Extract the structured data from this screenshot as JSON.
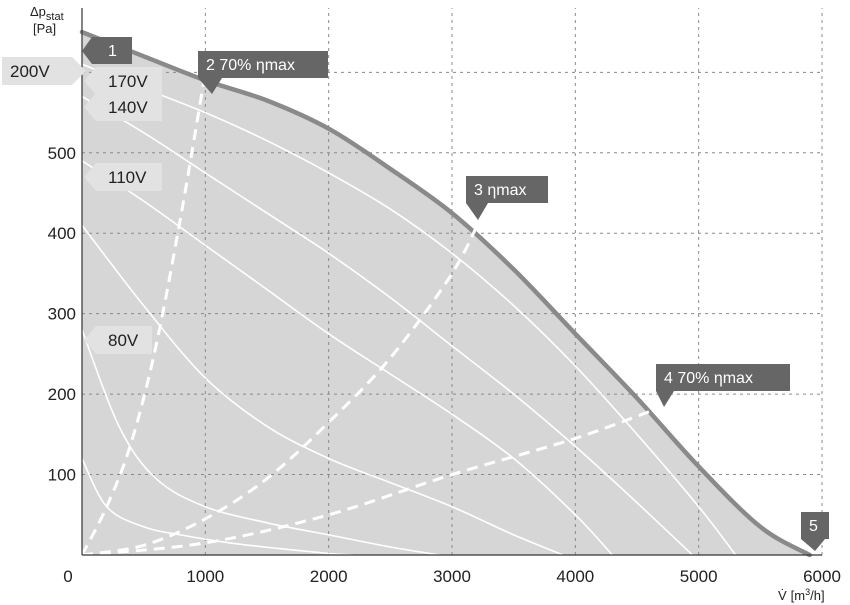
{
  "chart_data": {
    "type": "line",
    "ylabel": "Δp",
    "ylabel_sub": "stat",
    "yunit": "[Pa]",
    "xlabel": "V̇",
    "xunit_pre": "[m",
    "xunit_sup": "3",
    "xunit_post": "/h]",
    "xlim": [
      0,
      6000
    ],
    "ylim": [
      0,
      680
    ],
    "xticks": [
      "0",
      "1000",
      "2000",
      "3000",
      "4000",
      "5000",
      "6000"
    ],
    "xtick_values": [
      0,
      1000,
      2000,
      3000,
      4000,
      5000,
      6000
    ],
    "yticks": [
      "100",
      "200",
      "300",
      "400",
      "500"
    ],
    "ytick_values": [
      100,
      200,
      300,
      400,
      500
    ],
    "grid": true,
    "envelope": {
      "name": "200V",
      "x": [
        0,
        500,
        1000,
        1500,
        2000,
        2500,
        3000,
        3500,
        4000,
        4500,
        5000,
        5500,
        5900
      ],
      "y": [
        650,
        620,
        590,
        565,
        530,
        480,
        425,
        355,
        275,
        195,
        110,
        35,
        0
      ]
    },
    "voltage_curves": [
      {
        "name": "170V",
        "x": [
          0,
          500,
          1000,
          1500,
          2000,
          2500,
          3000,
          3500,
          4000,
          4500,
          5000,
          5300
        ],
        "y": [
          610,
          580,
          550,
          515,
          475,
          430,
          375,
          310,
          235,
          150,
          60,
          0
        ]
      },
      {
        "name": "140V",
        "x": [
          0,
          500,
          1000,
          1500,
          2000,
          2500,
          3000,
          3500,
          4000,
          4500,
          4950
        ],
        "y": [
          570,
          525,
          475,
          425,
          375,
          320,
          260,
          200,
          135,
          65,
          0
        ]
      },
      {
        "name": "110V",
        "x": [
          0,
          500,
          1000,
          1500,
          2000,
          2500,
          3000,
          3500,
          4000,
          4300
        ],
        "y": [
          490,
          440,
          385,
          330,
          275,
          225,
          175,
          120,
          50,
          0
        ]
      },
      {
        "name": "",
        "x": [
          0,
          500,
          1000,
          1500,
          2000,
          2500,
          3000,
          3500,
          3900
        ],
        "y": [
          410,
          310,
          220,
          160,
          120,
          90,
          60,
          25,
          0
        ]
      },
      {
        "name": "80V",
        "x": [
          0,
          300,
          600,
          1000,
          1500,
          2000,
          2500,
          2900
        ],
        "y": [
          280,
          160,
          95,
          60,
          40,
          25,
          10,
          0
        ]
      },
      {
        "name": "",
        "x": [
          0,
          200,
          500,
          800,
          1200,
          1600,
          2000,
          2200
        ],
        "y": [
          120,
          60,
          35,
          25,
          15,
          8,
          2,
          0
        ]
      }
    ],
    "efficiency_lines": [
      {
        "name": "2 70% ηmax",
        "x": [
          0,
          200,
          400,
          600,
          800,
          1000
        ],
        "y": [
          0,
          60,
          140,
          260,
          420,
          600
        ]
      },
      {
        "name": "3 ηmax",
        "x": [
          0,
          500,
          1000,
          1500,
          2000,
          2500,
          3000,
          3250
        ],
        "y": [
          0,
          12,
          45,
          95,
          165,
          245,
          350,
          425
        ]
      },
      {
        "name": "4 70% ηmax",
        "x": [
          0,
          1000,
          2000,
          3000,
          4000,
          4800
        ],
        "y": [
          0,
          15,
          50,
          100,
          145,
          190
        ]
      }
    ],
    "markers": [
      {
        "label": "1",
        "x": 100,
        "y": 655
      },
      {
        "label": "2 70% ηmax",
        "x": 1000,
        "y": 600
      },
      {
        "label": "3 ηmax",
        "x": 3250,
        "y": 425
      },
      {
        "label": "4 70% ηmax",
        "x": 4800,
        "y": 190
      },
      {
        "label": "5",
        "x": 5900,
        "y": 0
      }
    ],
    "side_labels": [
      {
        "label": "200V",
        "y": 650
      },
      {
        "label": "170V",
        "y": 615
      },
      {
        "label": "140V",
        "y": 582
      },
      {
        "label": "110V",
        "y": 480
      },
      {
        "label": "80V",
        "y": 275
      }
    ],
    "colors": {
      "area": "#d6d6d6",
      "envelope": "#8a8a8a",
      "curve": "#ffffff",
      "tag": "#666666",
      "side_tag": "#e2e2e2",
      "grid": "#8a8a8a"
    }
  }
}
